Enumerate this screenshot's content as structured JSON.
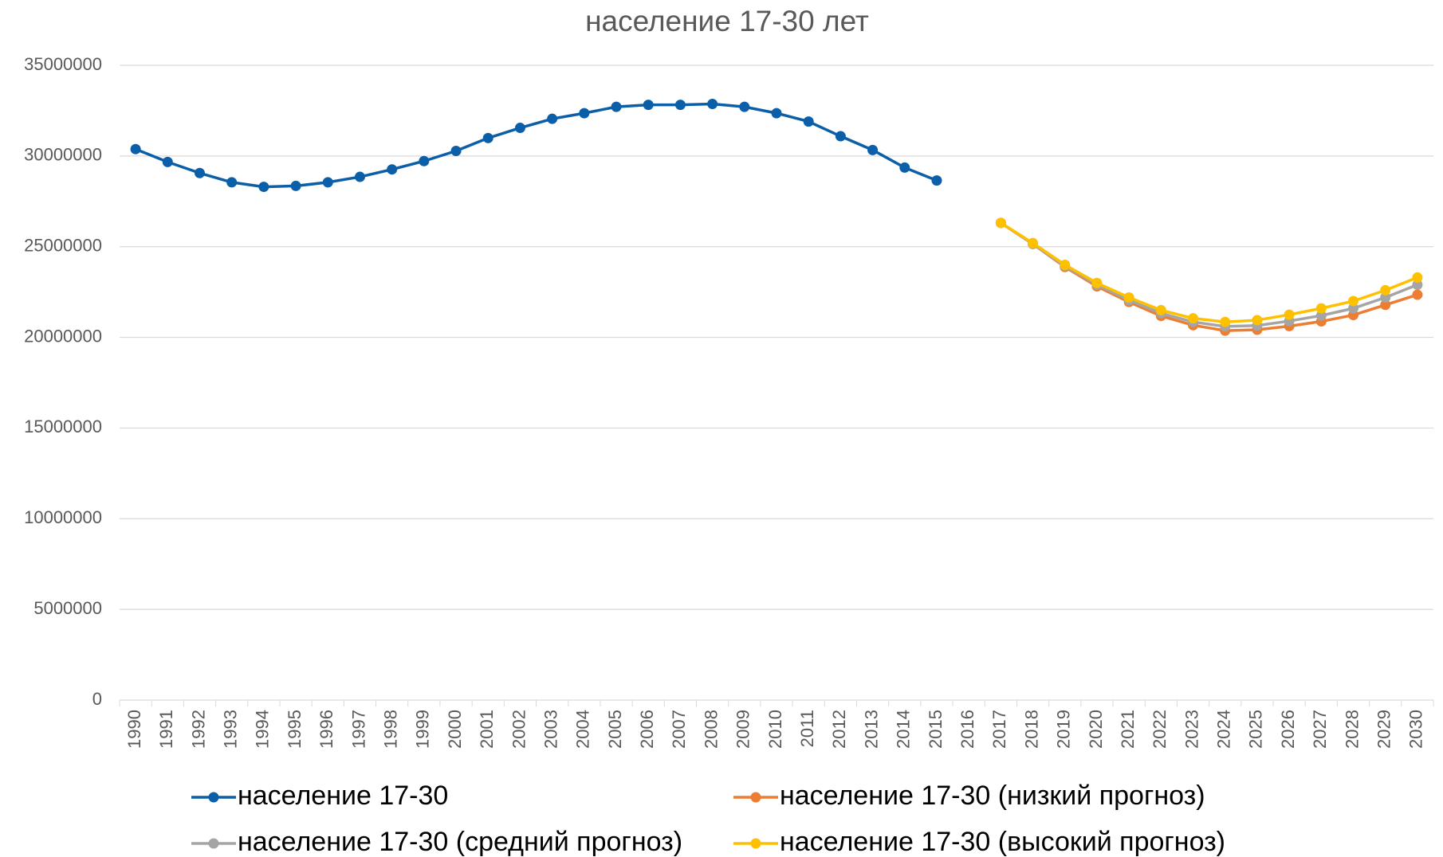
{
  "chart_data": {
    "type": "line",
    "title": "население 17-30 лет",
    "categories": [
      "1990",
      "1991",
      "1992",
      "1993",
      "1994",
      "1995",
      "1996",
      "1997",
      "1998",
      "1999",
      "2000",
      "2001",
      "2002",
      "2003",
      "2004",
      "2005",
      "2006",
      "2007",
      "2008",
      "2009",
      "2010",
      "2011",
      "2012",
      "2013",
      "2014",
      "2015",
      "2016",
      "2017",
      "2018",
      "2019",
      "2020",
      "2021",
      "2022",
      "2023",
      "2024",
      "2025",
      "2026",
      "2027",
      "2028",
      "2029",
      "2030"
    ],
    "series": [
      {
        "name": "население 17-30",
        "color": "#0b5fa8",
        "values": [
          30380000,
          29670000,
          29060000,
          28550000,
          28300000,
          28350000,
          28550000,
          28850000,
          29260000,
          29720000,
          30280000,
          30990000,
          31550000,
          32050000,
          32360000,
          32710000,
          32820000,
          32820000,
          32870000,
          32710000,
          32360000,
          31900000,
          31090000,
          30330000,
          29360000,
          28650000,
          null,
          null,
          null,
          null,
          null,
          null,
          null,
          null,
          null,
          null,
          null,
          null,
          null,
          null,
          null
        ]
      },
      {
        "name": "население 17-30 (низкий прогноз)",
        "color": "#ed7d31",
        "values": [
          null,
          null,
          null,
          null,
          null,
          null,
          null,
          null,
          null,
          null,
          null,
          null,
          null,
          null,
          null,
          null,
          null,
          null,
          null,
          null,
          null,
          null,
          null,
          null,
          null,
          null,
          null,
          26310000,
          25150000,
          23880000,
          22810000,
          21950000,
          21180000,
          20670000,
          20370000,
          20420000,
          20620000,
          20880000,
          21230000,
          21790000,
          22350000
        ]
      },
      {
        "name": "население 17-30 (средний прогноз)",
        "color": "#a5a5a5",
        "values": [
          null,
          null,
          null,
          null,
          null,
          null,
          null,
          null,
          null,
          null,
          null,
          null,
          null,
          null,
          null,
          null,
          null,
          null,
          null,
          null,
          null,
          null,
          null,
          null,
          null,
          null,
          null,
          26310000,
          25150000,
          23930000,
          22900000,
          22050000,
          21330000,
          20850000,
          20600000,
          20650000,
          20900000,
          21200000,
          21600000,
          22200000,
          22900000
        ]
      },
      {
        "name": "население 17-30 (высокий прогноз)",
        "color": "#ffc000",
        "values": [
          null,
          null,
          null,
          null,
          null,
          null,
          null,
          null,
          null,
          null,
          null,
          null,
          null,
          null,
          null,
          null,
          null,
          null,
          null,
          null,
          null,
          null,
          null,
          null,
          null,
          null,
          null,
          26310000,
          25200000,
          24000000,
          23000000,
          22200000,
          21500000,
          21050000,
          20850000,
          20950000,
          21250000,
          21600000,
          22000000,
          22600000,
          23300000
        ]
      }
    ],
    "ylim": [
      0,
      35000000
    ],
    "yticks": [
      0,
      5000000,
      10000000,
      15000000,
      20000000,
      25000000,
      30000000,
      35000000
    ],
    "grid": true
  }
}
